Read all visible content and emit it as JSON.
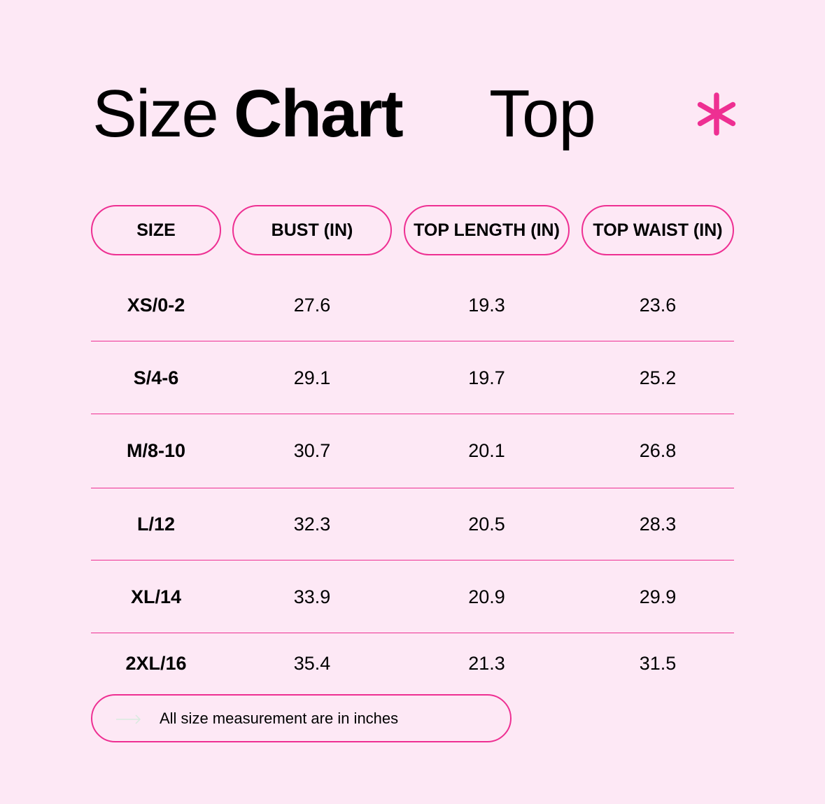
{
  "title": {
    "light": "Size",
    "bold": "Chart",
    "subtitle": "Top"
  },
  "accent_color": "#ee2f92",
  "background_color": "#fde8f5",
  "decoration_icon": "asterisk-icon",
  "table": {
    "headers": [
      "SIZE",
      "BUST (IN)",
      "TOP LENGTH (IN)",
      "TOP WAIST (IN)"
    ],
    "rows": [
      [
        "XS/0-2",
        "27.6",
        "19.3",
        "23.6"
      ],
      [
        "S/4-6",
        "29.1",
        "19.7",
        "25.2"
      ],
      [
        "M/8-10",
        "30.7",
        "20.1",
        "26.8"
      ],
      [
        "L/12",
        "32.3",
        "20.5",
        "28.3"
      ],
      [
        "XL/14",
        "33.9",
        "20.9",
        "29.9"
      ],
      [
        "2XL/16",
        "35.4",
        "21.3",
        "31.5"
      ]
    ]
  },
  "note": {
    "icon": "arrow-right-icon",
    "text": "All size measurement are in inches"
  }
}
